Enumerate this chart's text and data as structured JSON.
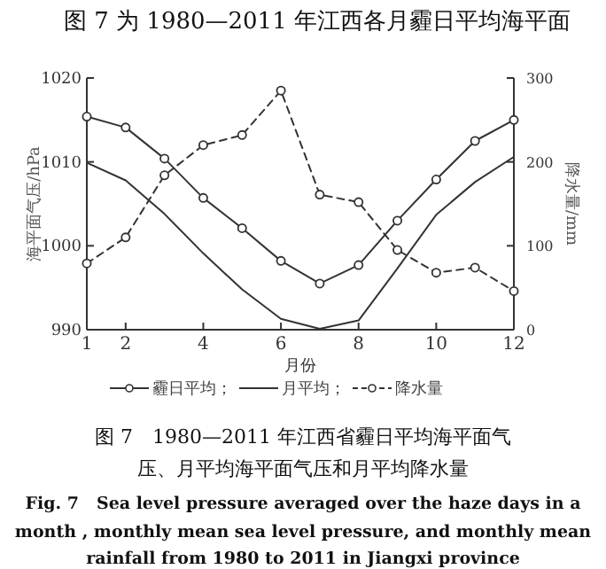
{
  "chart_data": {
    "type": "line",
    "title": "图 7 为 1980—2011 年江西各月霾日平均海平面",
    "xlabel": "月份",
    "ylabel": "海平面气压/hPa",
    "y2label": "降水量/mm",
    "x": [
      1,
      2,
      3,
      4,
      5,
      6,
      7,
      8,
      9,
      10,
      11,
      12
    ],
    "xlim": [
      1,
      12
    ],
    "xticks": [
      1,
      2,
      4,
      6,
      8,
      10,
      12
    ],
    "ylim": [
      990,
      1020
    ],
    "yticks": [
      990,
      1000,
      1010,
      1020
    ],
    "y2lim": [
      0,
      300
    ],
    "y2ticks": [
      0,
      100,
      200,
      300
    ],
    "grid": false,
    "legend": "bottom",
    "series": [
      {
        "name": "霾日平均；",
        "color": "#333333",
        "marker": "circle",
        "line_style": "solid",
        "values": [
          1015.4,
          1014.1,
          1010.4,
          1005.7,
          1002.1,
          998.2,
          995.5,
          997.7,
          1003,
          1007.9,
          1012.5,
          1015
        ]
      },
      {
        "name": "月平均；",
        "color": "#333333",
        "marker": "none",
        "line_style": "solid",
        "values": [
          1009.9,
          1007.8,
          1003.8,
          999.1,
          994.8,
          991.3,
          990.1,
          991.1,
          997.3,
          1003.7,
          1007.6,
          1010.6
        ]
      },
      {
        "name": "降水量",
        "color": "#333333",
        "marker": "circle",
        "line_style": "dashed",
        "axis": "y2",
        "values": [
          79,
          110,
          184,
          220,
          232,
          285,
          161,
          152,
          95,
          68,
          74,
          46
        ]
      }
    ],
    "annotations": [
      "图 7　1980—2011 年江西省霾日平均海平面气",
      "压、月平均海平面气压和月平均降水量",
      "Fig. 7　Sea level pressure averaged over the haze days in a",
      "month , monthly mean sea level pressure, and monthly mean",
      "rainfall from 1980 to 2011 in Jiangxi province"
    ]
  }
}
